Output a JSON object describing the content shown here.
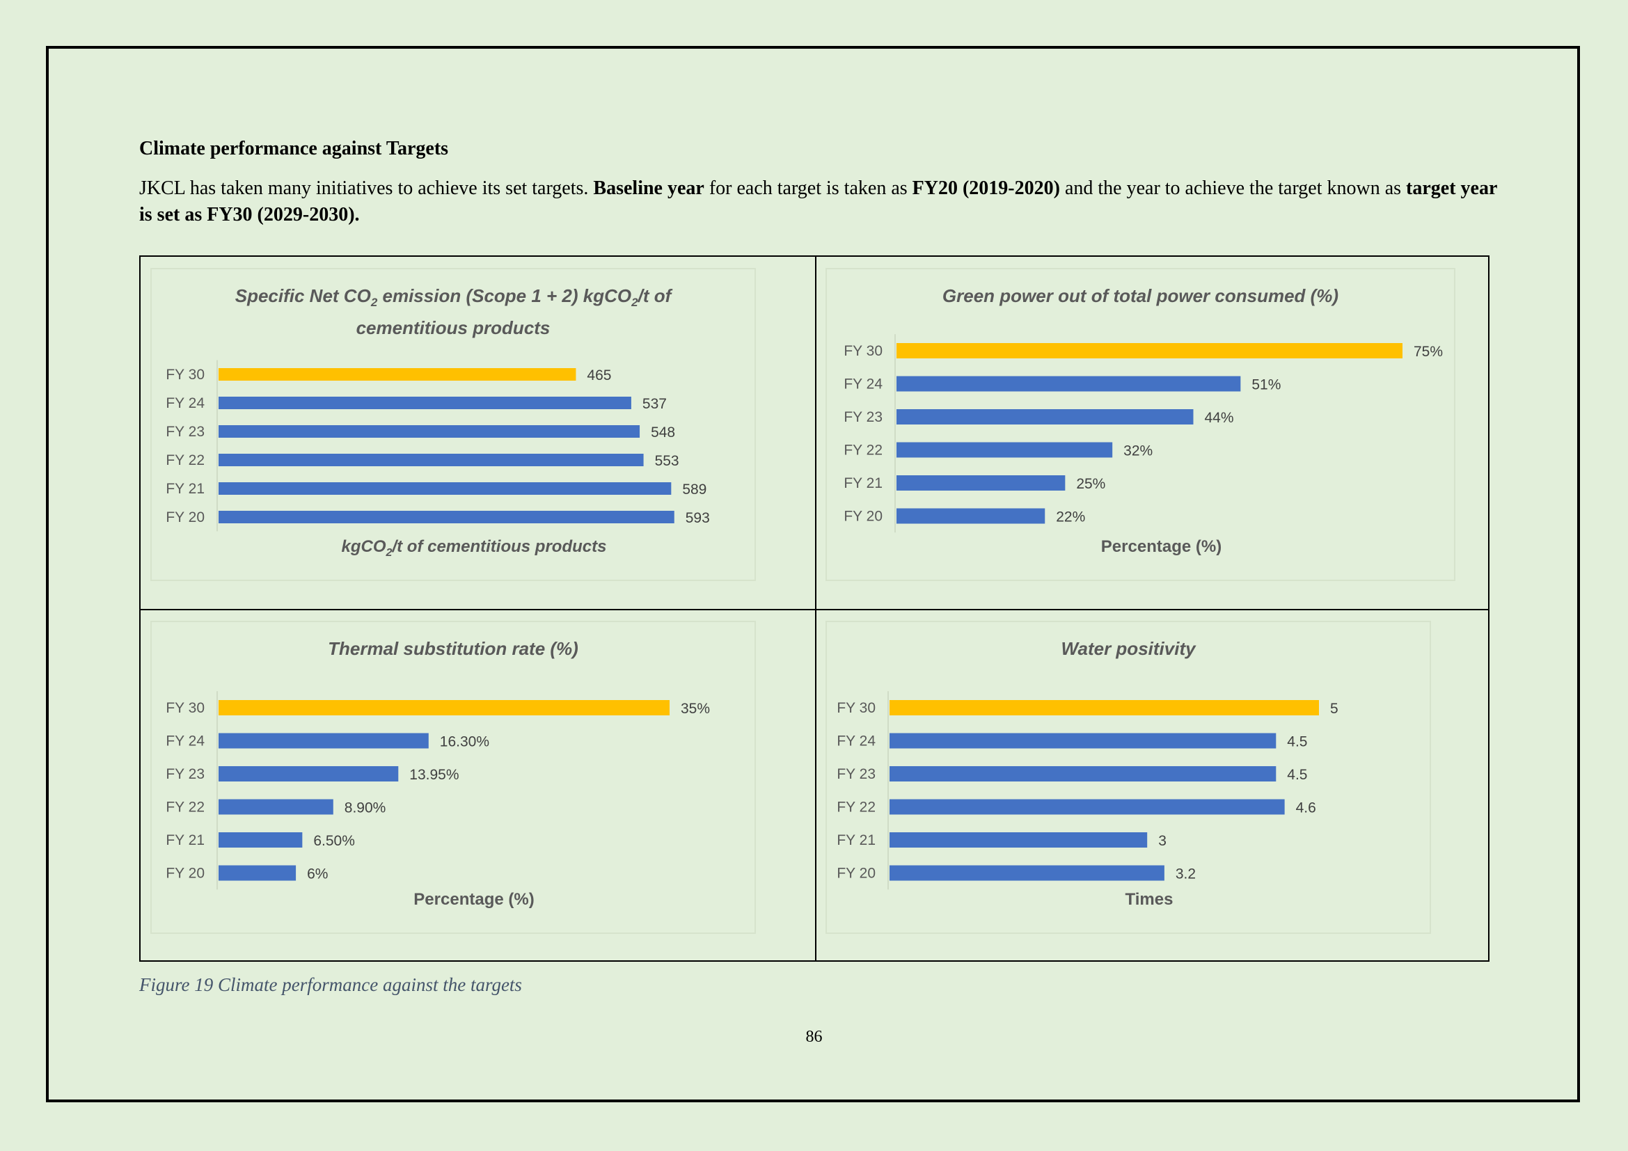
{
  "page": {
    "heading": "Climate performance against Targets",
    "intro": {
      "p1": "JKCL has taken many initiatives to achieve its set targets. ",
      "b1": "Baseline year",
      "p2": " for each target is taken as ",
      "b2": "FY20 (2019-2020)",
      "p3": " and the year to achieve the target known as ",
      "b3": "target year is set as FY30 (2029-2030)."
    },
    "caption": "Figure 19 Climate performance against the targets",
    "page_number": "86"
  },
  "colors": {
    "actual": "#4472c4",
    "target": "#ffc000",
    "text": "#595959"
  },
  "chart_data": [
    {
      "type": "bar",
      "orientation": "horizontal",
      "title_parts": [
        "Specific Net CO",
        "2",
        " emission (Scope 1 + 2) kgCO",
        "2",
        "/t of",
        "cementitious products"
      ],
      "title": "Specific Net CO2 emission (Scope 1 + 2) kgCO2/t of cementitious products",
      "xlabel_parts": [
        "kgCO",
        "2",
        "/t of cementitious products"
      ],
      "xlabel": "kgCO2/t of cementitious products",
      "categories": [
        "FY 30",
        "FY 24",
        "FY 23",
        "FY 22",
        "FY 21",
        "FY 20"
      ],
      "values": [
        465,
        537,
        548,
        553,
        589,
        593
      ],
      "labels": [
        "465",
        "537",
        "548",
        "553",
        "589",
        "593"
      ],
      "highlight": "FY 30",
      "xlim": [
        0,
        605
      ],
      "grid": false,
      "legend": "none"
    },
    {
      "type": "bar",
      "orientation": "horizontal",
      "title": "Green power out of total power consumed (%)",
      "xlabel": "Percentage (%)",
      "categories": [
        "FY 30",
        "FY 24",
        "FY 23",
        "FY 22",
        "FY 21",
        "FY 20"
      ],
      "values": [
        75,
        51,
        44,
        32,
        25,
        22
      ],
      "labels": [
        "75%",
        "51%",
        "44%",
        "32%",
        "25%",
        "22%"
      ],
      "highlight": "FY 30",
      "xlim": [
        0,
        75
      ],
      "grid": false,
      "legend": "none"
    },
    {
      "type": "bar",
      "orientation": "horizontal",
      "title": "Thermal substitution rate (%)",
      "xlabel": "Percentage (%)",
      "categories": [
        "FY 30",
        "FY 24",
        "FY 23",
        "FY 22",
        "FY 21",
        "FY 20"
      ],
      "values": [
        35,
        16.3,
        13.95,
        8.9,
        6.5,
        6
      ],
      "labels": [
        "35%",
        "16.30%",
        "13.95%",
        "8.90%",
        "6.50%",
        "6%"
      ],
      "highlight": "FY 30",
      "xlim": [
        0,
        35
      ],
      "grid": false,
      "legend": "none"
    },
    {
      "type": "bar",
      "orientation": "horizontal",
      "title": "Water positivity",
      "xlabel": "Times",
      "categories": [
        "FY 30",
        "FY 24",
        "FY 23",
        "FY 22",
        "FY 21",
        "FY 20"
      ],
      "values": [
        5,
        4.5,
        4.5,
        4.6,
        3,
        3.2
      ],
      "labels": [
        "5",
        "4.5",
        "4.5",
        "4.6",
        "3",
        "3.2"
      ],
      "highlight": "FY 30",
      "xlim": [
        0,
        5
      ],
      "grid": false,
      "legend": "none"
    }
  ]
}
